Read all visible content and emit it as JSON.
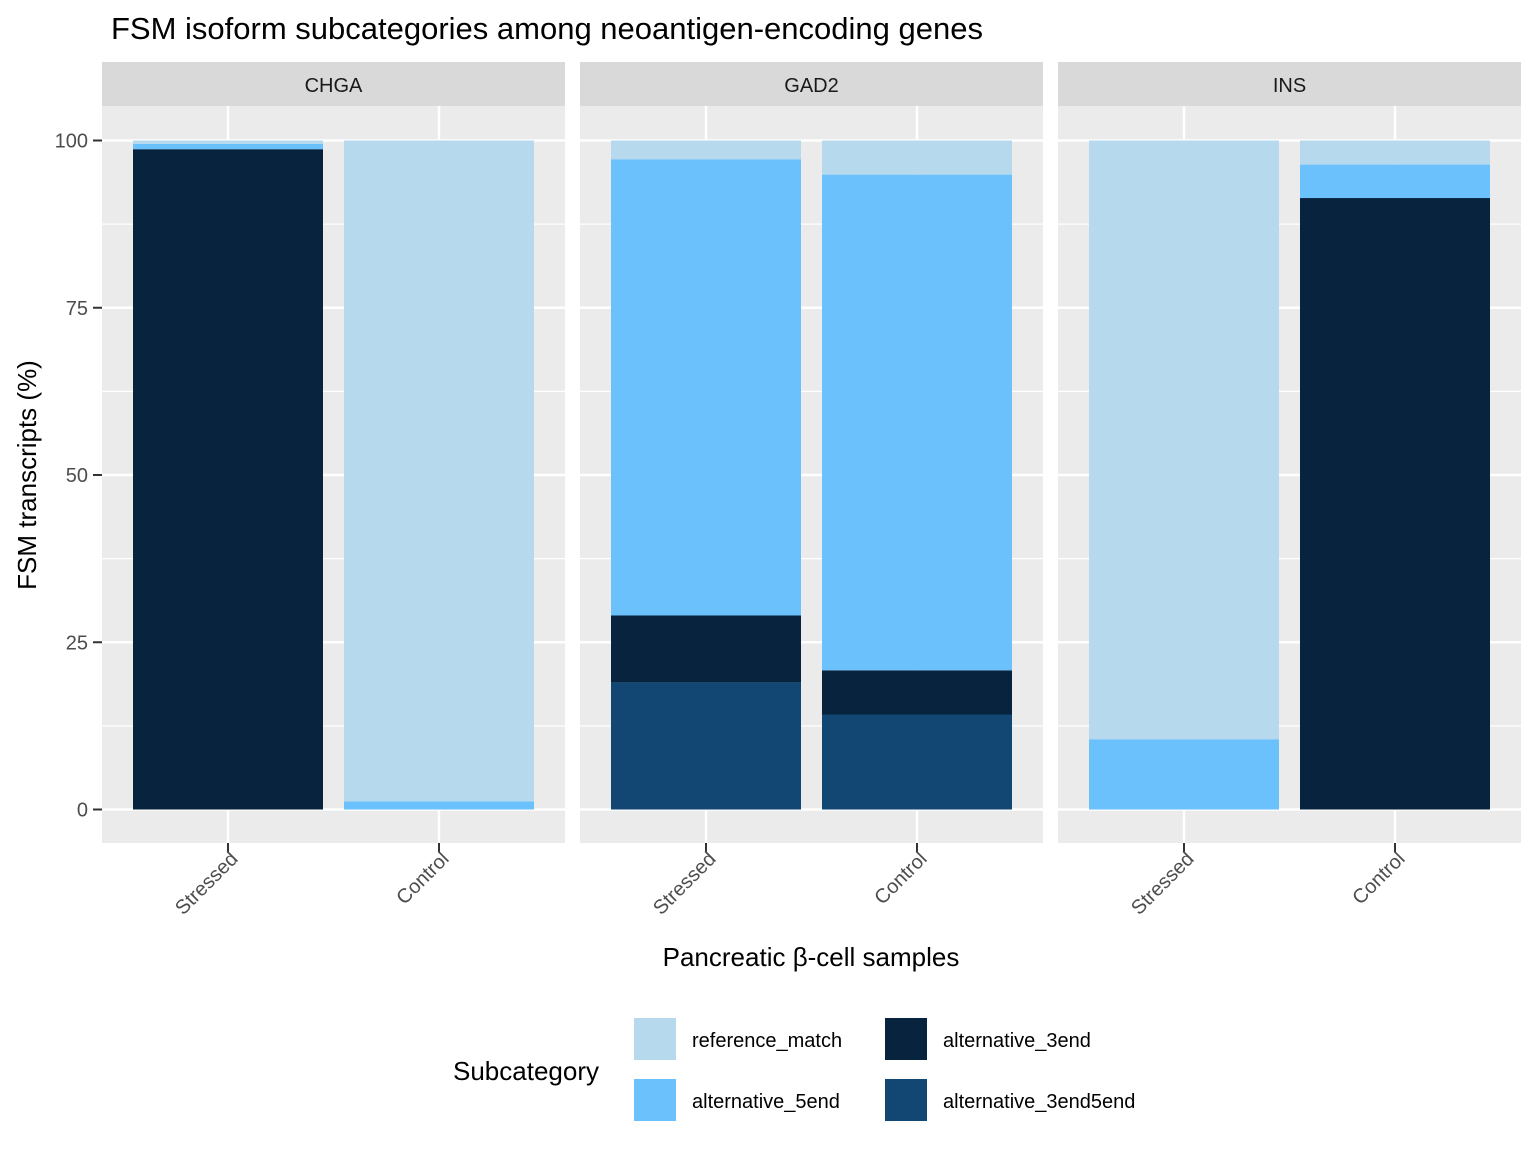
{
  "chart_data": {
    "type": "bar",
    "stacked": true,
    "title": "FSM isoform subcategories among neoantigen-encoding genes",
    "xlabel": "Pancreatic β-cell samples",
    "ylabel": "FSM transcripts (%)",
    "ylim": [
      0,
      100
    ],
    "yticks": [
      0,
      25,
      50,
      75,
      100
    ],
    "grid": true,
    "legend": {
      "title": "Subcategory",
      "position": "bottom",
      "entries": [
        {
          "name": "reference_match",
          "color": "#b7d9ee"
        },
        {
          "name": "alternative_5end",
          "color": "#6bc1fb"
        },
        {
          "name": "alternative_3end",
          "color": "#07233d"
        },
        {
          "name": "alternative_3end5end",
          "color": "#124673"
        }
      ]
    },
    "categories": [
      "Stressed",
      "Control"
    ],
    "facets": [
      {
        "name": "CHGA",
        "series": [
          {
            "name": "alternative_3end5end",
            "values": [
              0,
              0
            ]
          },
          {
            "name": "alternative_3end",
            "values": [
              98.7,
              0
            ]
          },
          {
            "name": "alternative_5end",
            "values": [
              0.8,
              1.2
            ]
          },
          {
            "name": "reference_match",
            "values": [
              0.5,
              98.8
            ]
          }
        ]
      },
      {
        "name": "GAD2",
        "series": [
          {
            "name": "alternative_3end5end",
            "values": [
              19.0,
              14.2
            ]
          },
          {
            "name": "alternative_3end",
            "values": [
              10.0,
              6.6
            ]
          },
          {
            "name": "alternative_5end",
            "values": [
              68.2,
              74.1
            ]
          },
          {
            "name": "reference_match",
            "values": [
              2.8,
              5.1
            ]
          }
        ]
      },
      {
        "name": "INS",
        "series": [
          {
            "name": "alternative_3end5end",
            "values": [
              0,
              0
            ]
          },
          {
            "name": "alternative_3end",
            "values": [
              0,
              91.4
            ]
          },
          {
            "name": "alternative_5end",
            "values": [
              10.5,
              5.0
            ]
          },
          {
            "name": "reference_match",
            "values": [
              89.5,
              3.6
            ]
          }
        ]
      }
    ]
  }
}
